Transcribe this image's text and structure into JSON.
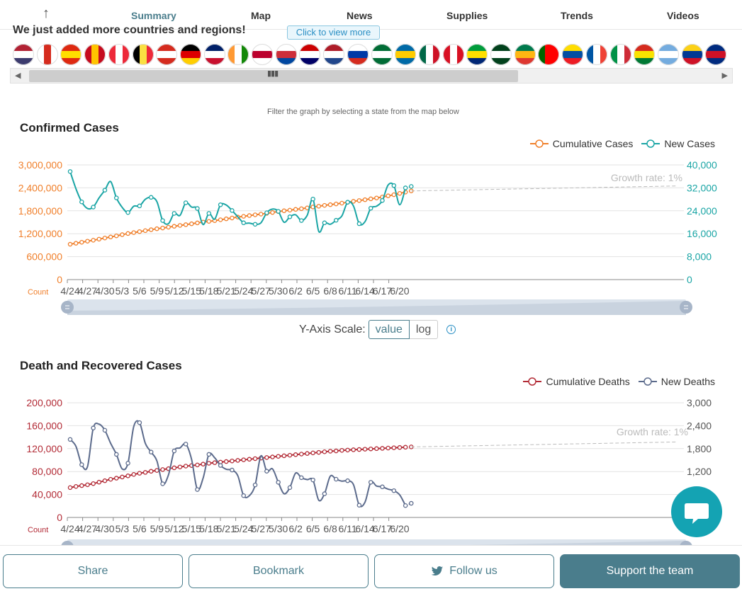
{
  "nav": {
    "tabs": [
      {
        "label": "Summary",
        "active": true
      },
      {
        "label": "Map"
      },
      {
        "label": "News"
      },
      {
        "label": "Supplies"
      },
      {
        "label": "Trends"
      },
      {
        "label": "Videos"
      }
    ]
  },
  "banner": {
    "text": "We just added more countries and regions!",
    "link_label": "Click to view more"
  },
  "flags": [
    "us",
    "ca",
    "cn",
    "es",
    "at",
    "be",
    "ch",
    "de",
    "gb",
    "in",
    "jp",
    "kr",
    "my",
    "nl",
    "ru",
    "sa",
    "se",
    "mx",
    "pe",
    "br",
    "pk",
    "za",
    "pt",
    "ec",
    "fr",
    "it",
    "bo",
    "ar",
    "co",
    "cr"
  ],
  "filter_hint": "Filter the graph by selecting a state from the map below",
  "chart_data": [
    {
      "type": "line",
      "title": "Confirmed Cases",
      "x": [
        "4/24",
        "4/25",
        "4/26",
        "4/27",
        "4/28",
        "4/29",
        "4/30",
        "5/1",
        "5/2",
        "5/3",
        "5/4",
        "5/5",
        "5/6",
        "5/7",
        "5/8",
        "5/9",
        "5/10",
        "5/11",
        "5/12",
        "5/13",
        "5/14",
        "5/15",
        "5/16",
        "5/17",
        "5/18",
        "5/19",
        "5/20",
        "5/21",
        "5/22",
        "5/23",
        "5/24",
        "5/25",
        "5/26",
        "5/27",
        "5/28",
        "5/29",
        "5/30",
        "5/31",
        "6/1",
        "6/2",
        "6/3",
        "6/4",
        "6/5",
        "6/6",
        "6/7",
        "6/8",
        "6/9",
        "6/10",
        "6/11",
        "6/12",
        "6/13",
        "6/14",
        "6/15",
        "6/16",
        "6/17",
        "6/18",
        "6/19",
        "6/20",
        "6/21",
        "6/22"
      ],
      "x_tick_labels": [
        "4/24",
        "4/27",
        "4/30",
        "5/3",
        "5/6",
        "5/9",
        "5/12",
        "5/15",
        "5/18",
        "5/21",
        "5/24",
        "5/27",
        "5/30",
        "6/2",
        "6/5",
        "6/8",
        "6/11",
        "6/14",
        "6/17",
        "6/20"
      ],
      "y_left_ticks": [
        "0",
        "600,000",
        "1,200,000",
        "1,800,000",
        "2,400,000",
        "3,000,000"
      ],
      "y_right_ticks": [
        "0",
        "8,000",
        "16,000",
        "24,000",
        "32,000",
        "40,000"
      ],
      "y_left_label": "Count",
      "ylim_left": [
        0,
        3000000
      ],
      "ylim_right": [
        0,
        40000
      ],
      "annotation": "Growth rate: 1%",
      "grid": true,
      "legend_position": "top-right",
      "series": [
        {
          "name": "Cumulative Cases",
          "axis": "left",
          "color": "#f07f2a",
          "values": [
            925000,
            951000,
            978000,
            1005000,
            1030000,
            1059000,
            1088000,
            1115000,
            1144000,
            1175000,
            1205000,
            1230000,
            1255000,
            1280000,
            1305000,
            1330000,
            1350000,
            1371000,
            1395000,
            1417000,
            1437000,
            1460000,
            1483000,
            1505000,
            1523000,
            1542000,
            1565000,
            1590000,
            1612000,
            1636000,
            1655000,
            1675000,
            1695000,
            1713000,
            1733000,
            1756000,
            1780000,
            1800000,
            1817000,
            1837000,
            1855000,
            1875000,
            1900000,
            1920000,
            1942000,
            1960000,
            1979000,
            2000000,
            2023000,
            2048000,
            2068000,
            2090000,
            2113000,
            2135000,
            2160000,
            2191000,
            2220000,
            2255000,
            2290000,
            2320000
          ]
        },
        {
          "name": "New Cases",
          "axis": "right",
          "color": "#1aa5a5",
          "values": [
            37700,
            31700,
            27100,
            24800,
            25300,
            28500,
            31200,
            34200,
            28500,
            25200,
            23400,
            25600,
            25700,
            28000,
            28700,
            27200,
            20600,
            19500,
            23100,
            22400,
            26800,
            25300,
            24800,
            19200,
            23100,
            21100,
            26100,
            26000,
            24100,
            21900,
            19800,
            19700,
            19300,
            19800,
            23300,
            24600,
            23800,
            20000,
            21900,
            22600,
            20600,
            22400,
            28100,
            16800,
            19800,
            19300,
            20700,
            22200,
            27000,
            25700,
            19500,
            20200,
            24900,
            25600,
            27600,
            33000,
            32800,
            26100,
            32000,
            32500
          ]
        }
      ]
    },
    {
      "type": "line",
      "title": "Death and Recovered Cases",
      "x": [
        "4/24",
        "4/25",
        "4/26",
        "4/27",
        "4/28",
        "4/29",
        "4/30",
        "5/1",
        "5/2",
        "5/3",
        "5/4",
        "5/5",
        "5/6",
        "5/7",
        "5/8",
        "5/9",
        "5/10",
        "5/11",
        "5/12",
        "5/13",
        "5/14",
        "5/15",
        "5/16",
        "5/17",
        "5/18",
        "5/19",
        "5/20",
        "5/21",
        "5/22",
        "5/23",
        "5/24",
        "5/25",
        "5/26",
        "5/27",
        "5/28",
        "5/29",
        "5/30",
        "5/31",
        "6/1",
        "6/2",
        "6/3",
        "6/4",
        "6/5",
        "6/6",
        "6/7",
        "6/8",
        "6/9",
        "6/10",
        "6/11",
        "6/12",
        "6/13",
        "6/14",
        "6/15",
        "6/16",
        "6/17",
        "6/18",
        "6/19",
        "6/20",
        "6/21",
        "6/22"
      ],
      "x_tick_labels": [
        "4/24",
        "4/27",
        "4/30",
        "5/3",
        "5/6",
        "5/9",
        "5/12",
        "5/15",
        "5/18",
        "5/21",
        "5/24",
        "5/27",
        "5/30",
        "6/2",
        "6/5",
        "6/8",
        "6/11",
        "6/14",
        "6/17",
        "6/20"
      ],
      "y_left_ticks": [
        "0",
        "40,000",
        "80,000",
        "120,000",
        "160,000",
        "200,000"
      ],
      "y_right_ticks": [
        "",
        "1,200",
        "1,800",
        "2,400",
        "3,000"
      ],
      "y_left_label": "Count",
      "ylim_left": [
        0,
        200000
      ],
      "ylim_right": [
        0,
        3000
      ],
      "annotation": "Growth rate: 1%",
      "grid": true,
      "legend_position": "top-right",
      "series": [
        {
          "name": "Cumulative Deaths",
          "axis": "left",
          "color": "#b22a35",
          "values": [
            52000,
            54000,
            55500,
            57000,
            59000,
            61500,
            64000,
            66500,
            68500,
            70500,
            72500,
            75000,
            77000,
            78500,
            80500,
            82000,
            83500,
            85000,
            86500,
            88000,
            89500,
            90500,
            91500,
            93000,
            94500,
            95500,
            96500,
            97500,
            98500,
            99500,
            100500,
            101500,
            102500,
            103500,
            104500,
            105500,
            106500,
            107500,
            108500,
            109500,
            110500,
            111500,
            112500,
            113500,
            114500,
            115500,
            116000,
            117000,
            117500,
            118000,
            118500,
            119000,
            119500,
            120000,
            120500,
            121000,
            121500,
            122000,
            122500,
            123000
          ]
        },
        {
          "name": "New Deaths",
          "axis": "right",
          "color": "#5c6b8c",
          "values": [
            2040,
            1860,
            1380,
            1330,
            2340,
            2440,
            2280,
            1940,
            1650,
            1270,
            1420,
            2380,
            2480,
            1940,
            1710,
            1480,
            880,
            1110,
            1740,
            1820,
            1920,
            1520,
            730,
            1030,
            1650,
            1560,
            1360,
            1260,
            1240,
            1090,
            570,
            570,
            850,
            1610,
            1210,
            1270,
            920,
            620,
            780,
            1160,
            1040,
            990,
            980,
            450,
            620,
            1080,
            1000,
            950,
            960,
            860,
            320,
            400,
            920,
            820,
            800,
            740,
            700,
            590,
            310,
            370
          ]
        }
      ]
    }
  ],
  "scale": {
    "label": "Y-Axis Scale:",
    "value_label": "value",
    "log_label": "log",
    "info_icon": "info-icon"
  },
  "bottom": {
    "share": "Share",
    "bookmark": "Bookmark",
    "follow": "Follow us",
    "support": "Support the team"
  },
  "colors": {
    "accent": "#4a7d8c",
    "chat": "#14a3b3"
  }
}
